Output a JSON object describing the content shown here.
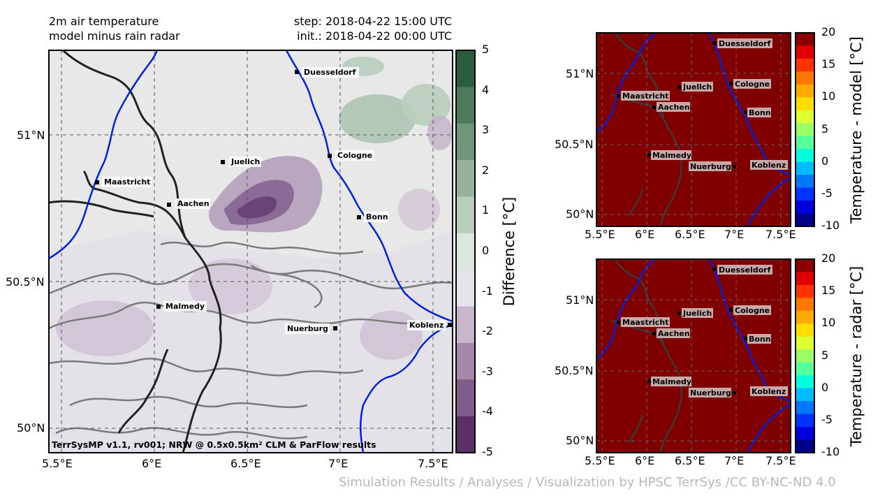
{
  "header": {
    "title_line1": "2m air temperature",
    "title_line2": "model minus rain radar",
    "step": "step: 2018-04-22 15:00 UTC",
    "init": "init.: 2018-04-22 00:00 UTC"
  },
  "main_map": {
    "lon_ticks": [
      "5.5°E",
      "6°E",
      "6.5°E",
      "7°E",
      "7.5°E"
    ],
    "lat_ticks": [
      "51°N",
      "50.5°N",
      "50°N"
    ],
    "credit": "TerrSysMP v1.1, rv001; NRW @ 0.5x0.5km² CLM & ParFlow results",
    "colorbar": {
      "label": "Difference [°C]",
      "ticks": [
        "5",
        "4",
        "3",
        "2",
        "1",
        "0",
        "-1",
        "-2",
        "-3",
        "-4",
        "-5"
      ],
      "colors": [
        "#2b5c3b",
        "#4d7a5a",
        "#6f957b",
        "#94b29c",
        "#b9cdbd",
        "#dde5df",
        "#e6e2ea",
        "#c7b6cc",
        "#a589aa",
        "#815c8a",
        "#5b2f68"
      ]
    }
  },
  "cities": [
    "Duesseldorf",
    "Juelich",
    "Cologne",
    "Maastricht",
    "Aachen",
    "Bonn",
    "Malmedy",
    "Nuerburg",
    "Koblenz"
  ],
  "model_map": {
    "lon_ticks": [
      "5.5°E",
      "6°E",
      "6.5°E",
      "7°E",
      "7.5°E"
    ],
    "lat_ticks": [
      "51°N",
      "50.5°N",
      "50°N"
    ],
    "colorbar": {
      "label": "Temperature - model [°C]",
      "ticks": [
        "20",
        "15",
        "10",
        "5",
        "0",
        "-5",
        "-10"
      ]
    }
  },
  "radar_map": {
    "lon_ticks": [
      "5.5°E",
      "6°E",
      "6.5°E",
      "7°E",
      "7.5°E"
    ],
    "lat_ticks": [
      "51°N",
      "50.5°N",
      "50°N"
    ],
    "colorbar": {
      "label": "Temperature - radar [°C]",
      "ticks": [
        "20",
        "15",
        "10",
        "5",
        "0",
        "-5",
        "-10"
      ]
    }
  },
  "temp_colors": [
    "#8b0000",
    "#e00000",
    "#ff3300",
    "#ff7700",
    "#ffaa00",
    "#ffdd00",
    "#ddff33",
    "#99ff66",
    "#55ff99",
    "#00ffdd",
    "#00bbff",
    "#0077ff",
    "#0033ff",
    "#0000dd",
    "#000088"
  ],
  "footer": "Simulation Results / Analyses / Visualization by HPSC TerrSys /CC BY-NC-ND 4.0"
}
